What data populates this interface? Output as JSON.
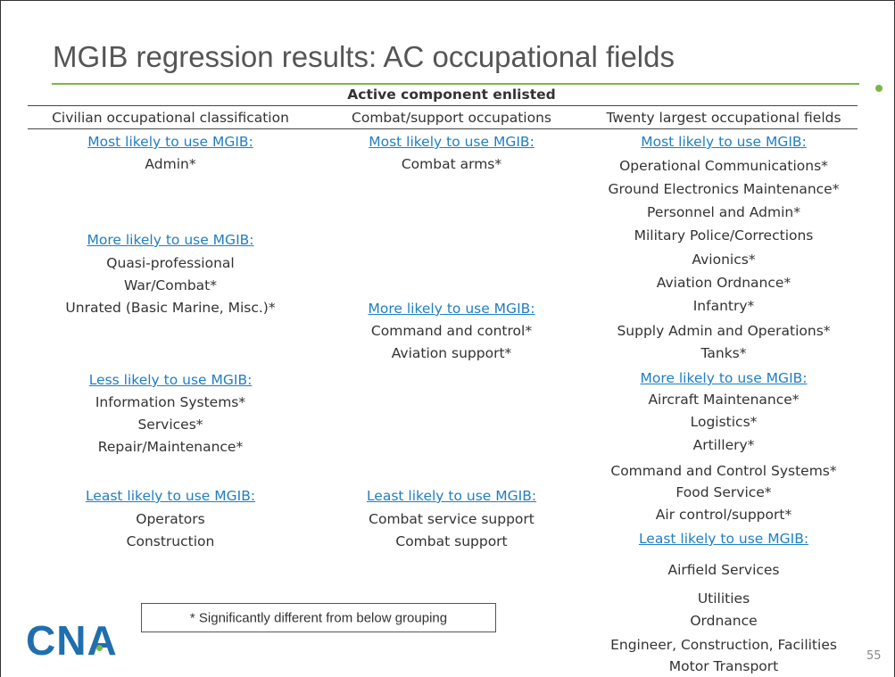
{
  "header": {
    "title": "MGIB regression results: AC occupational fields",
    "table_title": "Active component enlisted"
  },
  "columns": [
    {
      "heading": "Civilian occupational classification",
      "groups": [
        {
          "label": "Most likely to use MGIB:",
          "items": [
            "Admin*"
          ]
        },
        {
          "label": "More likely to use MGIB:",
          "items": [
            "Quasi-professional",
            "War/Combat*",
            "Unrated (Basic Marine, Misc.)*"
          ]
        },
        {
          "label": "Less likely to use MGIB:",
          "items": [
            "Information Systems*",
            "Services*",
            "Repair/Maintenance*"
          ]
        },
        {
          "label": "Least likely to use MGIB:",
          "items": [
            "Operators",
            "Construction"
          ]
        }
      ]
    },
    {
      "heading": "Combat/support occupations",
      "groups": [
        {
          "label": "Most likely to use MGIB:",
          "items": [
            "Combat arms*"
          ]
        },
        {
          "label": "More likely to use MGIB:",
          "items": [
            "Command and control*",
            "Aviation support*"
          ]
        },
        {
          "label": "Least likely to use MGIB:",
          "items": [
            "Combat service support",
            "Combat support"
          ]
        }
      ]
    },
    {
      "heading": "Twenty largest occupational fields",
      "groups": [
        {
          "label": "Most likely to use MGIB:",
          "items": [
            "Operational Communications*",
            "Ground Electronics Maintenance*",
            "Personnel and Admin*",
            "Military Police/Corrections",
            "Avionics*",
            "Aviation Ordnance*",
            "Infantry*",
            "Supply Admin and Operations*",
            "Tanks*"
          ]
        },
        {
          "label": "More likely to use MGIB:",
          "items": [
            "Aircraft Maintenance*",
            "Logistics*",
            "Artillery*",
            "Command and Control Systems*",
            "Food Service*",
            "Air control/support*"
          ]
        },
        {
          "label": "Least likely to use MGIB:",
          "items": [
            "Airfield Services",
            "Utilities",
            "Ordnance",
            "Engineer, Construction, Facilities",
            "Motor Transport"
          ]
        }
      ]
    }
  ],
  "note": "* Significantly different from below grouping",
  "logo": "CNA",
  "page_number": "55"
}
